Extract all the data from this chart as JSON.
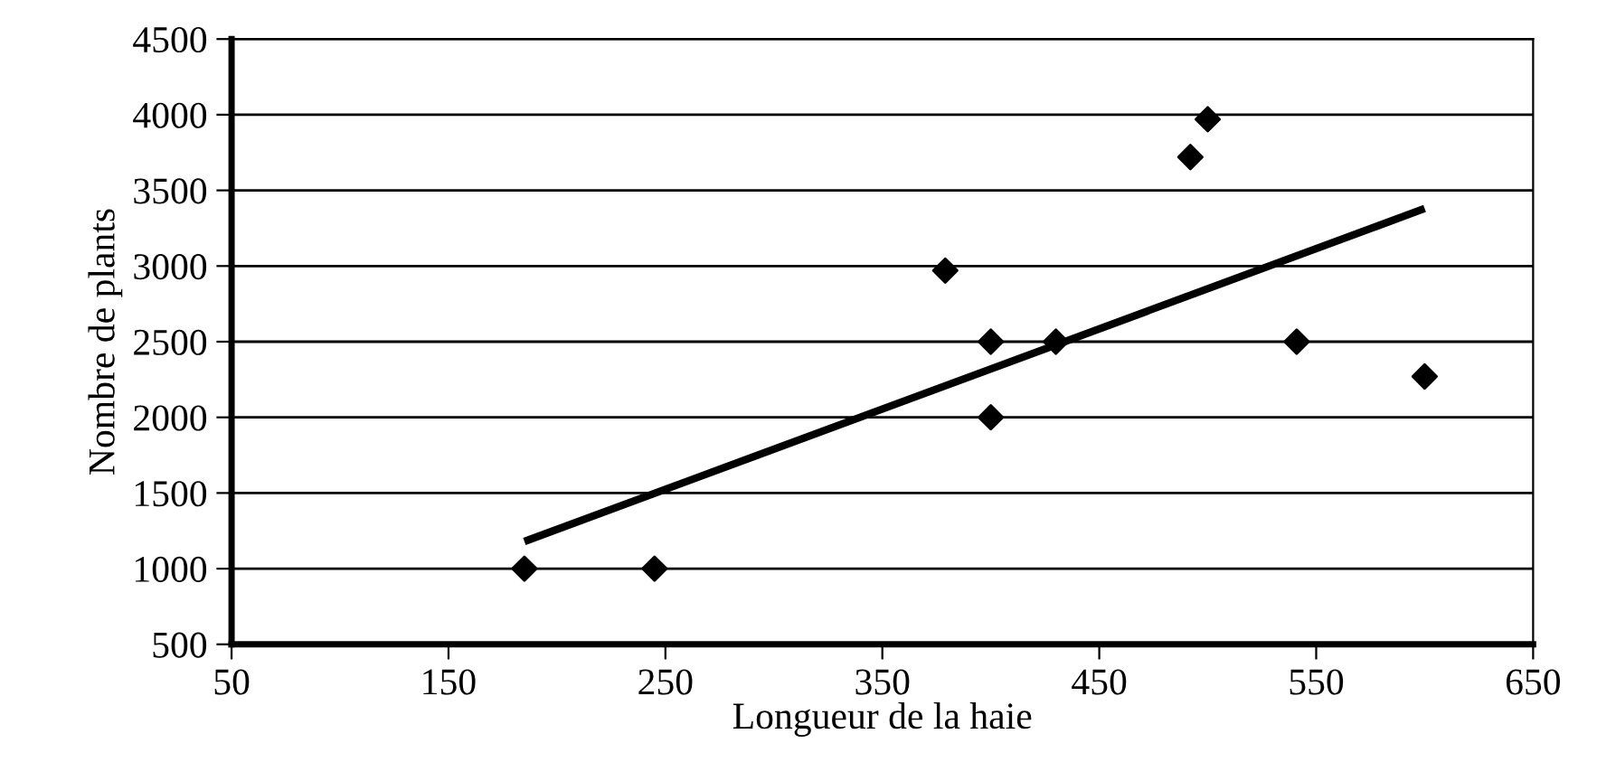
{
  "chart_data": {
    "type": "scatter",
    "xlabel": "Longueur de la haie",
    "ylabel": "Nombre de plants",
    "xlim": [
      50,
      650
    ],
    "xticks": [
      50,
      150,
      250,
      350,
      450,
      550,
      650
    ],
    "ylim": [
      500,
      4500
    ],
    "yticks": [
      500,
      1000,
      1500,
      2000,
      2500,
      3000,
      3500,
      4000,
      4500
    ],
    "grid": "y",
    "series": [
      {
        "color": "#000000",
        "marker": "diamond",
        "x": [
          185,
          245,
          379,
          400,
          400,
          430,
          492,
          500,
          541,
          600
        ],
        "values": [
          1000,
          1000,
          2970,
          2500,
          2000,
          2500,
          3720,
          3970,
          2500,
          2270
        ]
      },
      {
        "type": "line",
        "color": "#000000",
        "marker": "none",
        "x": [
          185,
          600
        ],
        "values": [
          1180,
          3380
        ]
      }
    ]
  }
}
